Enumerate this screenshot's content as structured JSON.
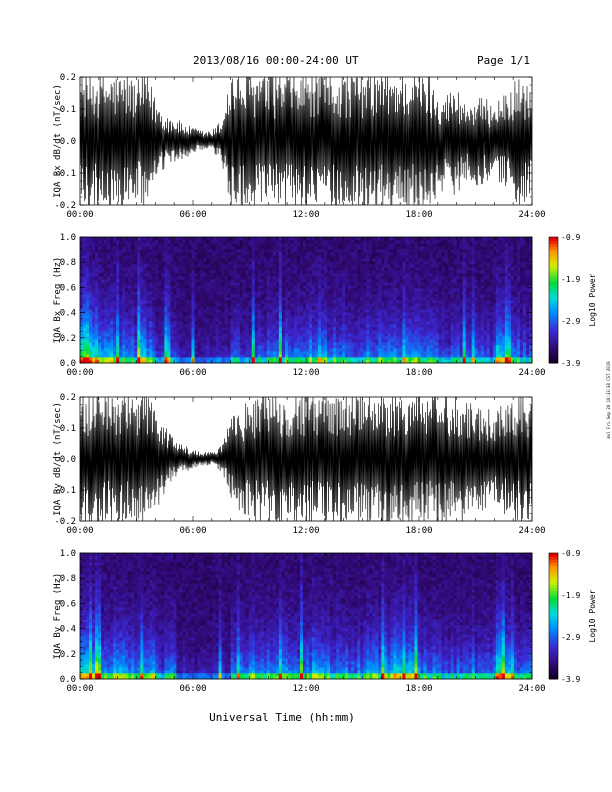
{
  "header": {
    "title": "2013/08/16  00:00-24:00 UT",
    "page": "Page 1/1"
  },
  "side_text": "mol Fri Sep 20 10:33:38 CST 2019",
  "xlabel": "Universal Time (hh:mm)",
  "colors": {
    "background": "#ffffff",
    "trace": "#000000",
    "spectrogram_base": "#1a0a5a"
  },
  "chart_data": [
    {
      "type": "line",
      "ylabel": "IQA Bx dB/dt (nT/sec)",
      "xlim": [
        0,
        24
      ],
      "ylim": [
        -0.2,
        0.2
      ],
      "x_ticks": [
        "00:00",
        "06:00",
        "12:00",
        "18:00",
        "24:00"
      ],
      "y_ticks": [
        "-0.2",
        "-0.1",
        "0.0",
        "0.1",
        "0.2"
      ],
      "series": [
        {
          "x": [
            0,
            0.5,
            1,
            1.5,
            2,
            2.5,
            3,
            3.5,
            4,
            4.5,
            5,
            5.5,
            6,
            6.5,
            7,
            7.5,
            8,
            8.5,
            9,
            9.5,
            10,
            10.5,
            11,
            11.5,
            12,
            12.5,
            13,
            13.5,
            14,
            14.5,
            15,
            15.5,
            16,
            16.5,
            17,
            17.5,
            18,
            18.5,
            19,
            19.5,
            20,
            20.5,
            21,
            21.5,
            22,
            22.5,
            23,
            23.5,
            24
          ],
          "envelope": [
            0.2,
            0.2,
            0.2,
            0.2,
            0.19,
            0.2,
            0.17,
            0.2,
            0.13,
            0.08,
            0.07,
            0.05,
            0.04,
            0.03,
            0.03,
            0.06,
            0.2,
            0.2,
            0.2,
            0.2,
            0.2,
            0.2,
            0.2,
            0.2,
            0.2,
            0.2,
            0.2,
            0.2,
            0.2,
            0.2,
            0.2,
            0.2,
            0.2,
            0.2,
            0.2,
            0.2,
            0.2,
            0.2,
            0.15,
            0.14,
            0.16,
            0.11,
            0.13,
            0.12,
            0.12,
            0.13,
            0.17,
            0.19,
            0.14
          ]
        }
      ]
    },
    {
      "type": "heatmap",
      "ylabel": "IQA Bx Freq (Hz)",
      "xlim": [
        0,
        24
      ],
      "ylim": [
        0,
        1.0
      ],
      "x_ticks": [
        "00:00",
        "06:00",
        "12:00",
        "18:00",
        "24:00"
      ],
      "y_ticks": [
        "0.0",
        "0.2",
        "0.4",
        "0.6",
        "0.8",
        "1.0"
      ],
      "colorbar": {
        "label": "Log10 Power",
        "range": [
          -3.9,
          -0.9
        ],
        "ticks": [
          "-0.9",
          "-1.9",
          "-2.9",
          "-3.9"
        ]
      },
      "activity_by_hour": [
        0.9,
        0.55,
        0.5,
        0.6,
        0.35,
        0.2,
        0.15,
        0.2,
        0.35,
        0.4,
        0.45,
        0.5,
        0.55,
        0.5,
        0.45,
        0.5,
        0.55,
        0.6,
        0.45,
        0.35,
        0.4,
        0.35,
        0.75,
        0.4
      ]
    },
    {
      "type": "line",
      "ylabel": "IQA By dB/dt (nT/sec)",
      "xlim": [
        0,
        24
      ],
      "ylim": [
        -0.2,
        0.2
      ],
      "x_ticks": [
        "00:00",
        "06:00",
        "12:00",
        "18:00",
        "24:00"
      ],
      "y_ticks": [
        "-0.2",
        "-0.1",
        "0.0",
        "0.1",
        "0.2"
      ],
      "series": [
        {
          "x": [
            0,
            0.5,
            1,
            1.5,
            2,
            2.5,
            3,
            3.5,
            4,
            4.5,
            5,
            5.5,
            6,
            6.5,
            7,
            7.5,
            8,
            8.5,
            9,
            9.5,
            10,
            10.5,
            11,
            11.5,
            12,
            12.5,
            13,
            13.5,
            14,
            14.5,
            15,
            15.5,
            16,
            16.5,
            17,
            17.5,
            18,
            18.5,
            19,
            19.5,
            20,
            20.5,
            21,
            21.5,
            22,
            22.5,
            23,
            23.5,
            24
          ],
          "envelope": [
            0.2,
            0.2,
            0.2,
            0.2,
            0.2,
            0.2,
            0.2,
            0.2,
            0.17,
            0.1,
            0.06,
            0.04,
            0.03,
            0.02,
            0.02,
            0.04,
            0.12,
            0.16,
            0.17,
            0.19,
            0.2,
            0.2,
            0.2,
            0.2,
            0.2,
            0.2,
            0.2,
            0.2,
            0.2,
            0.2,
            0.2,
            0.2,
            0.2,
            0.2,
            0.2,
            0.2,
            0.2,
            0.2,
            0.2,
            0.2,
            0.2,
            0.19,
            0.17,
            0.15,
            0.16,
            0.17,
            0.19,
            0.2,
            0.18
          ]
        }
      ]
    },
    {
      "type": "heatmap",
      "ylabel": "IQA By Freq (Hz)",
      "xlim": [
        0,
        24
      ],
      "ylim": [
        0,
        1.0
      ],
      "x_ticks": [
        "00:00",
        "06:00",
        "12:00",
        "18:00",
        "24:00"
      ],
      "y_ticks": [
        "0.0",
        "0.2",
        "0.4",
        "0.6",
        "0.8",
        "1.0"
      ],
      "colorbar": {
        "label": "Log10 Power",
        "range": [
          -3.9,
          -0.9
        ],
        "ticks": [
          "-0.9",
          "-1.9",
          "-2.9",
          "-3.9"
        ]
      },
      "activity_by_hour": [
        0.95,
        0.6,
        0.55,
        0.65,
        0.4,
        0.2,
        0.15,
        0.2,
        0.45,
        0.5,
        0.5,
        0.55,
        0.55,
        0.5,
        0.45,
        0.55,
        0.65,
        0.6,
        0.45,
        0.4,
        0.45,
        0.4,
        0.8,
        0.45
      ]
    }
  ]
}
